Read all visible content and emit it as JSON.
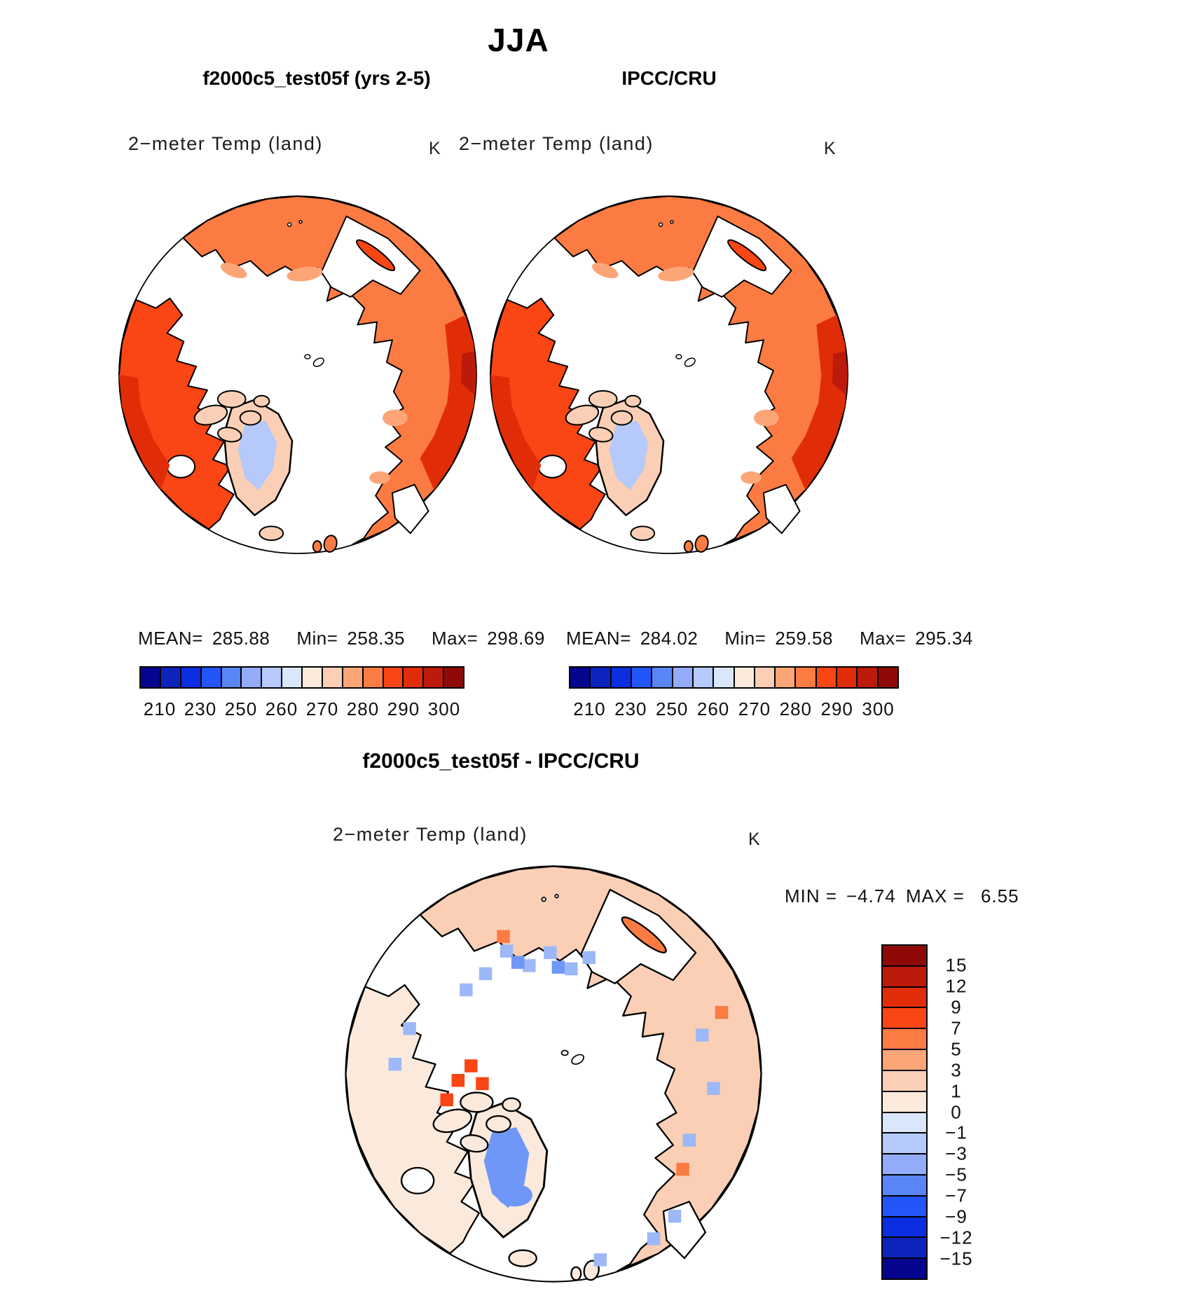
{
  "header": {
    "title": "JJA"
  },
  "panels": {
    "model": {
      "title": "f2000c5_test05f (yrs 2-5)",
      "field_label": "2−meter Temp (land)",
      "units": "K",
      "stats": {
        "mean_label": "MEAN=",
        "mean": "285.88",
        "min_label": "Min=",
        "min": "258.35",
        "max_label": "Max=",
        "max": "298.69"
      },
      "colorbar_ticks": [
        "210",
        "230",
        "250",
        "260",
        "270",
        "280",
        "290",
        "300"
      ]
    },
    "obs": {
      "title": "IPCC/CRU",
      "field_label": "2−meter Temp (land)",
      "units": "K",
      "stats": {
        "mean_label": "MEAN=",
        "mean": "284.02",
        "min_label": "Min=",
        "min": "259.58",
        "max_label": "Max=",
        "max": "295.34"
      },
      "colorbar_ticks": [
        "210",
        "230",
        "250",
        "260",
        "270",
        "280",
        "290",
        "300"
      ]
    },
    "diff": {
      "title": "f2000c5_test05f - IPCC/CRU",
      "field_label": "2−meter Temp (land)",
      "units": "K",
      "min_label": "MIN =",
      "min_value": "−4.74",
      "max_label": "MAX =",
      "max_value": "6.55",
      "colorbar_ticks": [
        "15",
        "12",
        "9",
        "7",
        "5",
        "3",
        "1",
        "0",
        "−1",
        "−3",
        "−5",
        "−7",
        "−9",
        "−12",
        "−15"
      ]
    }
  },
  "colorbar": {
    "palette_cold_to_warm": [
      "#05058F",
      "#0D24BC",
      "#0B2FE0",
      "#2256FA",
      "#5A85F7",
      "#93ACF9",
      "#B5C9FA",
      "#DAE7FB",
      "#FBEADC",
      "#FACFB5",
      "#FCA678",
      "#FB7B42",
      "#FA4514",
      "#E12D07",
      "#BC1A0A",
      "#8F0A06"
    ]
  },
  "chart_data": [
    {
      "type": "heatmap",
      "projection": "north-polar-stereographic",
      "title": "f2000c5_test05f (yrs 2-5)",
      "season": "JJA",
      "field": "2-meter Temp (land)",
      "units": "K",
      "stats": {
        "mean": 285.88,
        "min": 258.35,
        "max": 298.69
      },
      "colorbar_levels": [
        210,
        220,
        230,
        240,
        250,
        255,
        260,
        265,
        270,
        275,
        280,
        285,
        290,
        295,
        300
      ],
      "labeled_ticks": [
        210,
        230,
        250,
        260,
        270,
        280,
        290,
        300
      ],
      "legend_position": "bottom"
    },
    {
      "type": "heatmap",
      "projection": "north-polar-stereographic",
      "title": "IPCC/CRU",
      "season": "JJA",
      "field": "2-meter Temp (land)",
      "units": "K",
      "stats": {
        "mean": 284.02,
        "min": 259.58,
        "max": 295.34
      },
      "colorbar_levels": [
        210,
        220,
        230,
        240,
        250,
        255,
        260,
        265,
        270,
        275,
        280,
        285,
        290,
        295,
        300
      ],
      "labeled_ticks": [
        210,
        230,
        250,
        260,
        270,
        280,
        290,
        300
      ],
      "legend_position": "bottom"
    },
    {
      "type": "heatmap",
      "projection": "north-polar-stereographic",
      "title": "f2000c5_test05f - IPCC/CRU",
      "season": "JJA",
      "field": "2-meter Temp (land)",
      "units": "K",
      "stats": {
        "min": -4.74,
        "max": 6.55
      },
      "colorbar_levels": [
        -15,
        -12,
        -9,
        -7,
        -5,
        -3,
        -1,
        0,
        1,
        3,
        5,
        7,
        9,
        12,
        15
      ],
      "labeled_ticks": [
        -15,
        -12,
        -9,
        -7,
        -5,
        -3,
        -1,
        0,
        1,
        3,
        5,
        7,
        9,
        12,
        15
      ],
      "legend_position": "right"
    }
  ]
}
